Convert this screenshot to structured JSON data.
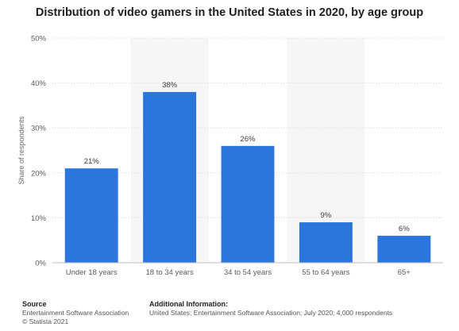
{
  "chart_data": {
    "type": "bar",
    "title": "Distribution of video gamers in the United States in 2020, by age group",
    "xlabel": "",
    "ylabel": "Share of respondents",
    "categories": [
      "Under 18 years",
      "18 to 34 years",
      "34 to 54 years",
      "55 to 64 years",
      "65+"
    ],
    "values": [
      21,
      38,
      26,
      9,
      6
    ],
    "value_labels": [
      "21%",
      "38%",
      "26%",
      "9%",
      "6%"
    ],
    "ylim": [
      0,
      50
    ],
    "yticks": [
      "0%",
      "10%",
      "20%",
      "30%",
      "40%",
      "50%"
    ],
    "ytick_values": [
      0,
      10,
      20,
      30,
      40,
      50
    ],
    "bar_color": "#2a76dd",
    "alt_band_color": "#f6f6f6",
    "grid": true,
    "legend": "none"
  },
  "footer": {
    "source_heading": "Source",
    "source_line1": "Entertainment Software Association",
    "source_line2": "© Statista 2021",
    "info_heading": "Additional Information:",
    "info_line1": "United States; Entertainment Software Association; July 2020; 4,000 respondents"
  }
}
